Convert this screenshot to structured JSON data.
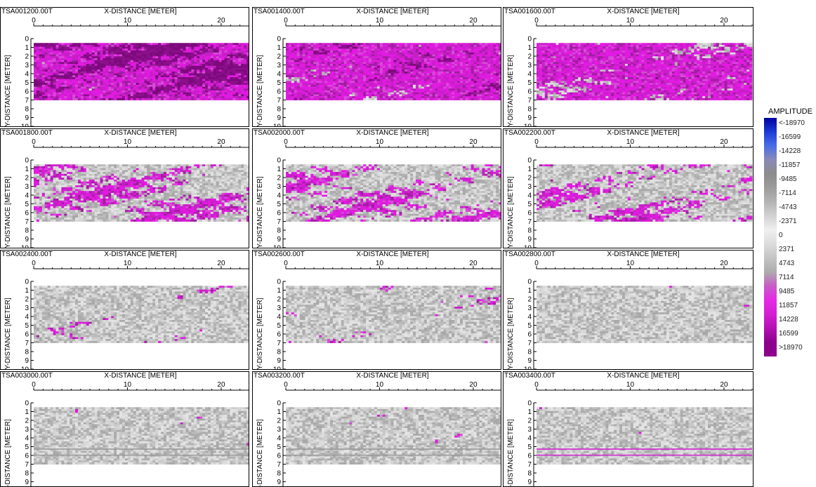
{
  "chart_data": {
    "type": "heatmap",
    "xlabel": "X-DISTANCE [METER]",
    "ylabel": "Y-DISTANCE [METER]",
    "x_ticks": [
      0,
      10,
      20
    ],
    "y_ticks": [
      0,
      1,
      2,
      3,
      4,
      5,
      6,
      7,
      8,
      9,
      10
    ],
    "xlim": [
      0,
      23
    ],
    "ylim": [
      0,
      10
    ],
    "data_extent": {
      "x": [
        0,
        23
      ],
      "y": [
        0.5,
        7
      ]
    },
    "grid": false,
    "panels": [
      {
        "title": "TSA001200.00T",
        "magenta_fraction": 0.92,
        "dark_fraction": 0.45
      },
      {
        "title": "TSA001400.00T",
        "magenta_fraction": 0.78,
        "dark_fraction": 0.22
      },
      {
        "title": "TSA001600.00T",
        "magenta_fraction": 0.7,
        "dark_fraction": 0.1
      },
      {
        "title": "TSA001800.00T",
        "magenta_fraction": 0.42,
        "dark_fraction": 0.05
      },
      {
        "title": "TSA002000.00T",
        "magenta_fraction": 0.4,
        "dark_fraction": 0.04
      },
      {
        "title": "TSA002200.00T",
        "magenta_fraction": 0.38,
        "dark_fraction": 0.05
      },
      {
        "title": "TSA002400.00T",
        "magenta_fraction": 0.22,
        "dark_fraction": 0.02
      },
      {
        "title": "TSA002600.00T",
        "magenta_fraction": 0.22,
        "dark_fraction": 0.02
      },
      {
        "title": "TSA002800.00T",
        "magenta_fraction": 0.1,
        "dark_fraction": 0.01
      },
      {
        "title": "TSA003000.00T",
        "magenta_fraction": 0.13,
        "dark_fraction": 0.01
      },
      {
        "title": "TSA003200.00T",
        "magenta_fraction": 0.11,
        "dark_fraction": 0.01
      },
      {
        "title": "TSA003400.00T",
        "magenta_fraction": 0.07,
        "dark_fraction": 0.01
      }
    ],
    "legend": {
      "title": "AMPLITUDE",
      "placement": "right",
      "labels": [
        "<-18970",
        "-16599",
        "-14228",
        "-11857",
        "-9485",
        "-7114",
        "-4743",
        "-2371",
        "0",
        "2371",
        "4743",
        "7114",
        "9485",
        "11857",
        "14228",
        "16599",
        ">18970"
      ],
      "colors": [
        "#0000a0",
        "#1c3cd6",
        "#4a6ee8",
        "#8a8ab4",
        "#8c8c8c",
        "#9c9c9c",
        "#b4b4b4",
        "#d2d2d2",
        "#f0f0f0",
        "#dcdcdc",
        "#c4c4c4",
        "#acacac",
        "#c85ac8",
        "#e628e6",
        "#d21ed2",
        "#b40fb4",
        "#8c008c"
      ]
    }
  }
}
